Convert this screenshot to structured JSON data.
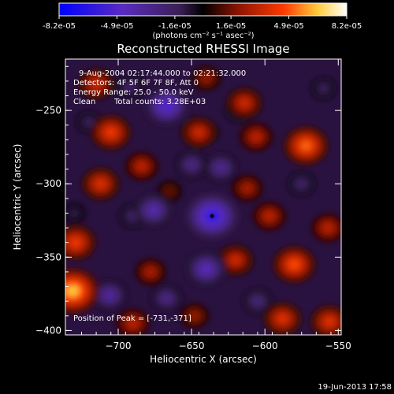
{
  "colorbar": {
    "ticks": [
      "-8.2e-05",
      "-4.9e-05",
      "-1.6e-05",
      "1.6e-05",
      "4.9e-05",
      "8.2e-05"
    ],
    "tick_values": [
      -8.2e-05,
      -4.9e-05,
      -1.6e-05,
      1.6e-05,
      4.9e-05,
      8.2e-05
    ],
    "range": [
      -8.2e-05,
      8.2e-05
    ],
    "unit_label": "(photons cm⁻² s⁻¹ asec⁻²)"
  },
  "colors": {
    "background": "#000000",
    "text": "#ffffff",
    "colormap": [
      "#0000ff",
      "#5a2cc0",
      "#4a2a6a",
      "#000000",
      "#8a1400",
      "#ff3a00",
      "#ffcc40",
      "#ffffff"
    ]
  },
  "info_text": {
    "time": "9-Aug-2004 02:17:44.000 to 02:21:32.000",
    "detectors": "Detectors: 4F 5F 6F 7F 8F, Att 0",
    "energy": "Energy Range: 25.0 - 50.0 keV",
    "method": "Clean",
    "counts": "Total counts: 3.28E+03",
    "peak": "Position of Peak = [-731,-371]"
  },
  "footer": {
    "timestamp": "19-Jun-2013 17:58"
  },
  "chart_data": {
    "type": "heatmap",
    "title": "Reconstructed RHESSI Image",
    "xlabel": "Heliocentric X (arcsec)",
    "ylabel": "Heliocentric Y (arcsec)",
    "xlim": [
      -736,
      -548
    ],
    "ylim": [
      -403,
      -215
    ],
    "xticks": [
      -700,
      -650,
      -600,
      -550
    ],
    "yticks": [
      -250,
      -300,
      -350,
      -400
    ],
    "value_range": [
      -8.2e-05,
      8.2e-05
    ],
    "peak_position": [
      -731,
      -371
    ],
    "features": [
      {
        "x": -731,
        "y": -373,
        "value": 8.2e-05
      },
      {
        "x": -729,
        "y": -340,
        "value": 5.5e-05
      },
      {
        "x": -712,
        "y": -300,
        "value": 4.9e-05
      },
      {
        "x": -705,
        "y": -265,
        "value": 5.5e-05
      },
      {
        "x": -684,
        "y": -288,
        "value": 4e-05
      },
      {
        "x": -715,
        "y": -232,
        "value": 4.5e-05
      },
      {
        "x": -690,
        "y": -395,
        "value": 4e-05
      },
      {
        "x": -678,
        "y": -360,
        "value": 3.5e-05
      },
      {
        "x": -648,
        "y": -390,
        "value": 3e-05
      },
      {
        "x": -645,
        "y": -265,
        "value": 4.5e-05
      },
      {
        "x": -614,
        "y": -245,
        "value": 4.5e-05
      },
      {
        "x": -606,
        "y": -268,
        "value": 4e-05
      },
      {
        "x": -612,
        "y": -303,
        "value": 3.5e-05
      },
      {
        "x": -597,
        "y": -322,
        "value": 4e-05
      },
      {
        "x": -620,
        "y": -352,
        "value": 4.5e-05
      },
      {
        "x": -580,
        "y": -355,
        "value": 6e-05
      },
      {
        "x": -572,
        "y": -274,
        "value": 6.5e-05
      },
      {
        "x": -557,
        "y": -330,
        "value": 4e-05
      },
      {
        "x": -588,
        "y": -392,
        "value": 5e-05
      },
      {
        "x": -556,
        "y": -394,
        "value": 5e-05
      },
      {
        "x": -640,
        "y": -228,
        "value": 3e-05
      },
      {
        "x": -665,
        "y": -305,
        "value": 2e-05
      },
      {
        "x": -636,
        "y": -322,
        "value": -8.2e-05
      },
      {
        "x": -667,
        "y": -247,
        "value": -6.5e-05
      },
      {
        "x": -676,
        "y": -318,
        "value": -5e-05
      },
      {
        "x": -640,
        "y": -358,
        "value": -5.5e-05
      },
      {
        "x": -706,
        "y": -376,
        "value": -4.5e-05
      },
      {
        "x": -650,
        "y": -287,
        "value": -3.5e-05
      },
      {
        "x": -630,
        "y": -289,
        "value": -4e-05
      },
      {
        "x": -667,
        "y": -378,
        "value": -3.5e-05
      },
      {
        "x": -618,
        "y": -250,
        "value": -2.5e-05
      },
      {
        "x": -640,
        "y": -265,
        "value": -2e-05
      },
      {
        "x": -690,
        "y": -322,
        "value": -2.5e-05
      },
      {
        "x": -575,
        "y": -300,
        "value": -2.5e-05
      },
      {
        "x": -720,
        "y": -258,
        "value": -2e-05
      },
      {
        "x": -692,
        "y": -234,
        "value": -2.5e-05
      },
      {
        "x": -605,
        "y": -380,
        "value": -3e-05
      },
      {
        "x": -560,
        "y": -235,
        "value": -2e-05
      },
      {
        "x": -730,
        "y": -320,
        "value": -1.5e-05
      }
    ]
  }
}
